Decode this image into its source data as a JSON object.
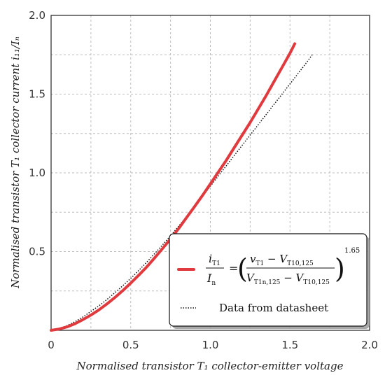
{
  "chart_data": {
    "type": "line",
    "title": "",
    "xlabel": "Normalised transistor T₁ collector-emitter voltage",
    "ylabel": "Normalised transistor T₁ collector current i₁₁/Iₙ",
    "xlim": [
      0,
      2.0
    ],
    "ylim": [
      0,
      2.0
    ],
    "xticks": [
      "0",
      "0.5",
      "1.0",
      "1.5",
      "2.0"
    ],
    "yticks": [
      "0.5",
      "1.0",
      "1.5",
      "2.0"
    ],
    "grid": true,
    "legend_position": "bottom-right",
    "series": [
      {
        "name": "i_T1 / I_n = ((v_T1 − V_T10,125) / (V_T1n,125 − V_T10,125))^1.65",
        "style": "solid",
        "color": "#e03a3e",
        "x": [
          0.0,
          0.05,
          0.1,
          0.15,
          0.2,
          0.25,
          0.3,
          0.35,
          0.4,
          0.45,
          0.5,
          0.55,
          0.6,
          0.65,
          0.7,
          0.75,
          0.8,
          0.85,
          0.9,
          0.95,
          1.0,
          1.05,
          1.1,
          1.15,
          1.2,
          1.25,
          1.3,
          1.35,
          1.4,
          1.45,
          1.5,
          1.53
        ],
        "y": [
          0.0,
          0.008,
          0.022,
          0.042,
          0.068,
          0.097,
          0.13,
          0.167,
          0.208,
          0.252,
          0.3,
          0.35,
          0.402,
          0.46,
          0.52,
          0.58,
          0.645,
          0.715,
          0.785,
          0.855,
          0.93,
          1.005,
          1.08,
          1.16,
          1.24,
          1.32,
          1.405,
          1.49,
          1.58,
          1.67,
          1.76,
          1.82
        ]
      },
      {
        "name": "Data from datasheet",
        "style": "dotted",
        "color": "#111111",
        "x": [
          0.05,
          0.1,
          0.15,
          0.2,
          0.25,
          0.3,
          0.35,
          0.4,
          0.45,
          0.5,
          0.55,
          0.6,
          0.65,
          0.7,
          0.75,
          0.8,
          0.85,
          0.9,
          0.95,
          1.0,
          1.05,
          1.1,
          1.15,
          1.2,
          1.25,
          1.3,
          1.35,
          1.4,
          1.45,
          1.5,
          1.55,
          1.6,
          1.64
        ],
        "y": [
          0.01,
          0.03,
          0.055,
          0.085,
          0.12,
          0.155,
          0.195,
          0.238,
          0.283,
          0.33,
          0.38,
          0.432,
          0.487,
          0.543,
          0.6,
          0.66,
          0.722,
          0.785,
          0.85,
          0.915,
          0.98,
          1.045,
          1.11,
          1.175,
          1.24,
          1.305,
          1.37,
          1.435,
          1.5,
          1.565,
          1.63,
          1.695,
          1.75
        ]
      }
    ]
  },
  "legend": {
    "item2_label": "Data from datasheet"
  },
  "colors": {
    "model_line": "#e03a3e",
    "datasheet_line": "#111111",
    "grid": "#bdbdbd"
  }
}
